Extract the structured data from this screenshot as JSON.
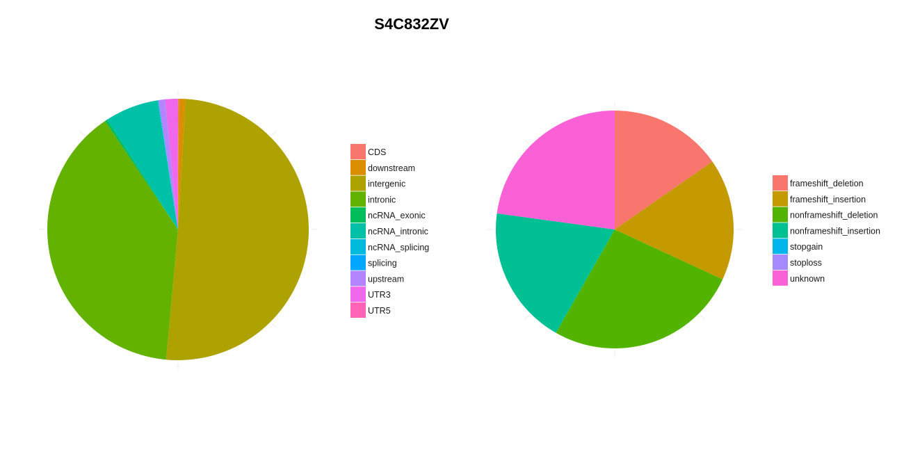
{
  "title": "S4C832ZV",
  "chart_data": [
    {
      "type": "pie",
      "title": "",
      "categories": [
        "CDS",
        "downstream",
        "intergenic",
        "intronic",
        "ncRNA_exonic",
        "ncRNA_intronic",
        "ncRNA_splicing",
        "splicing",
        "upstream",
        "UTR3",
        "UTR5"
      ],
      "values": [
        0.1,
        0.8,
        49.6,
        38.4,
        0.3,
        6.5,
        0.05,
        0.05,
        0.8,
        1.5,
        0.05
      ],
      "colors": [
        "#F8766D",
        "#DB8E00",
        "#AEA200",
        "#64B200",
        "#00BD5C",
        "#00C1A7",
        "#00BADE",
        "#00A6FF",
        "#B385FF",
        "#EF67EB",
        "#FF63B6"
      ],
      "legend": "right"
    },
    {
      "type": "pie",
      "title": "",
      "categories": [
        "frameshift_deletion",
        "frameshift_insertion",
        "nonframeshift_deletion",
        "nonframeshift_insertion",
        "stopgain",
        "stoploss",
        "unknown"
      ],
      "values": [
        14.9,
        16.1,
        25.6,
        18.4,
        0,
        0,
        22.2
      ],
      "colors": [
        "#F8766D",
        "#C49A00",
        "#53B400",
        "#00C094",
        "#00B6EB",
        "#A58AFF",
        "#FB61D7"
      ],
      "legend": "right"
    }
  ]
}
